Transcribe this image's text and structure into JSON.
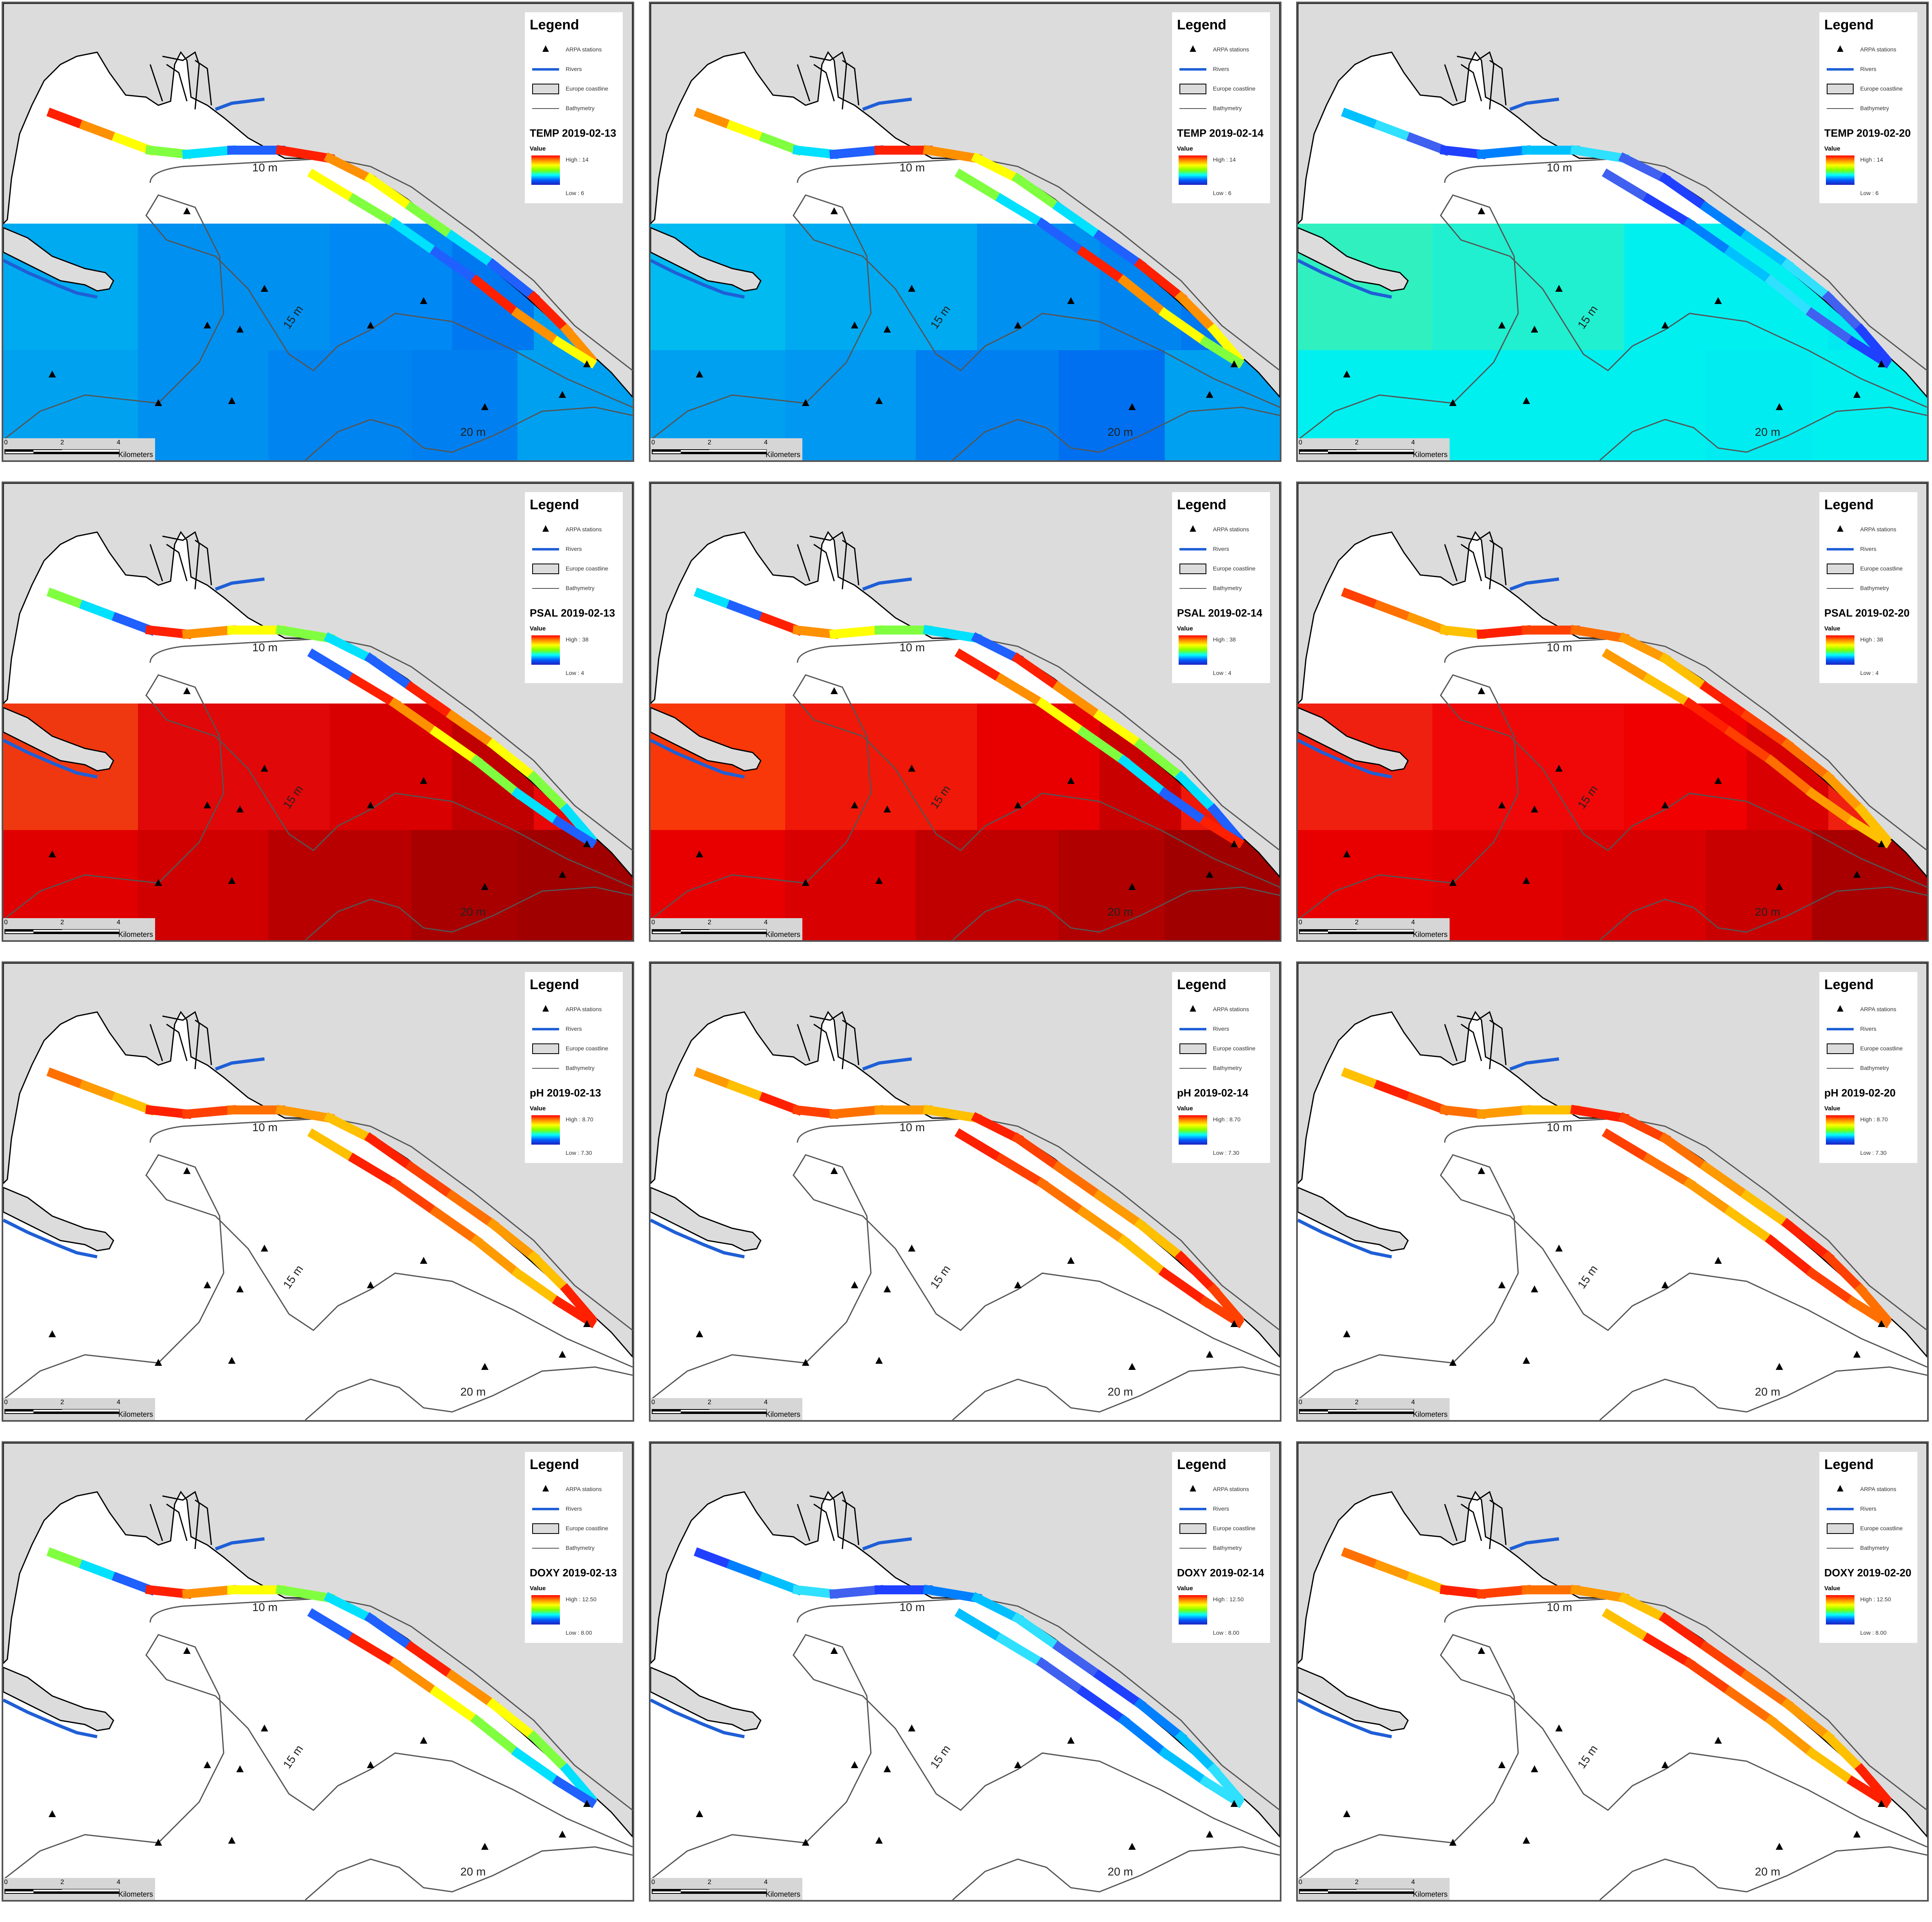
{
  "legend": {
    "title": "Legend",
    "items": [
      {
        "label": "ARPA  stations",
        "icon": "triangle-icon"
      },
      {
        "label": "Rivers",
        "icon": "river-line-icon"
      },
      {
        "label": "Europe coastline",
        "icon": "coastline-box-icon"
      },
      {
        "label": "Bathymetry",
        "icon": "bathymetry-line-icon"
      }
    ],
    "value_label": "Value"
  },
  "scale": {
    "ticks": [
      "0",
      "2",
      "4"
    ],
    "unit": "Kilometers"
  },
  "depth_labels": {
    "d10": "10 m",
    "d15": "15 m",
    "d20": "20 m"
  },
  "colors": {
    "land": "#dcdcdc",
    "river": "#1f5fd6",
    "coast": "#000000",
    "bathymetry": "#555555"
  },
  "panels": [
    {
      "variable": "TEMP 2019-02-13",
      "high": "High : 14",
      "low": "Low : 6",
      "grid_colors": [
        "#00aaf0",
        "#0090f0",
        "#0088f5",
        "#0078f0",
        "#00a0f0",
        "#00a2f0",
        "#0090f0",
        "#0085f0",
        "#0080f0",
        "#00a0f0"
      ],
      "track_type": "mixed"
    },
    {
      "variable": "TEMP 2019-02-14",
      "high": "High : 14",
      "low": "Low : 6",
      "grid_colors": [
        "#00baf0",
        "#00aaf0",
        "#0090f0",
        "#0085f0",
        "#0078f0",
        "#00a0f0",
        "#0098f0",
        "#0080f0",
        "#0070f0",
        "#00a0f0"
      ],
      "track_type": "mixed"
    },
    {
      "variable": "TEMP 2019-02-20",
      "high": "High : 14",
      "low": "Low : 6",
      "grid_colors": [
        "#30f0c0",
        "#20f0d0",
        "#00f0f0",
        "#00f0f0",
        "#00e8f0",
        "#00f0f0",
        "#00f0f0",
        "#00f0f0",
        "#00ecf0",
        "#00f0f0"
      ],
      "track_type": "cold"
    },
    {
      "variable": "PSAL 2019-02-13",
      "high": "High : 38",
      "low": "Low : 4",
      "grid_colors": [
        "#f03810",
        "#e00808",
        "#d80000",
        "#c00000",
        "#e80808",
        "#e00000",
        "#d00000",
        "#b80000",
        "#a80000",
        "#a00000"
      ],
      "track_type": "mixed"
    },
    {
      "variable": "PSAL 2019-02-14",
      "high": "High : 38",
      "low": "Low : 4",
      "grid_colors": [
        "#f83808",
        "#f01808",
        "#e80000",
        "#c80000",
        "#f01808",
        "#e80000",
        "#d80000",
        "#c00000",
        "#b00000",
        "#a00000"
      ],
      "track_type": "mixed"
    },
    {
      "variable": "PSAL 2019-02-20",
      "high": "High : 38",
      "low": "Low : 4",
      "grid_colors": [
        "#f02010",
        "#f00808",
        "#f00000",
        "#d80000",
        "#f02010",
        "#e80000",
        "#e00000",
        "#d80000",
        "#c80000",
        "#a80000"
      ],
      "track_type": "warm"
    },
    {
      "variable": "pH 2019-02-13",
      "high": "High : 8.70",
      "low": "Low : 7.30",
      "grid_colors": [],
      "track_type": "warm"
    },
    {
      "variable": "pH 2019-02-14",
      "high": "High : 8.70",
      "low": "Low : 7.30",
      "grid_colors": [],
      "track_type": "warm"
    },
    {
      "variable": "pH 2019-02-20",
      "high": "High : 8.70",
      "low": "Low : 7.30",
      "grid_colors": [],
      "track_type": "warm"
    },
    {
      "variable": "DOXY 2019-02-13",
      "high": "High : 12.50",
      "low": "Low : 8.00",
      "grid_colors": [],
      "track_type": "mixed"
    },
    {
      "variable": "DOXY 2019-02-14",
      "high": "High : 12.50",
      "low": "Low : 8.00",
      "grid_colors": [],
      "track_type": "cold"
    },
    {
      "variable": "DOXY 2019-02-20",
      "high": "High : 12.50",
      "low": "Low : 8.00",
      "grid_colors": [],
      "track_type": "warm"
    }
  ]
}
